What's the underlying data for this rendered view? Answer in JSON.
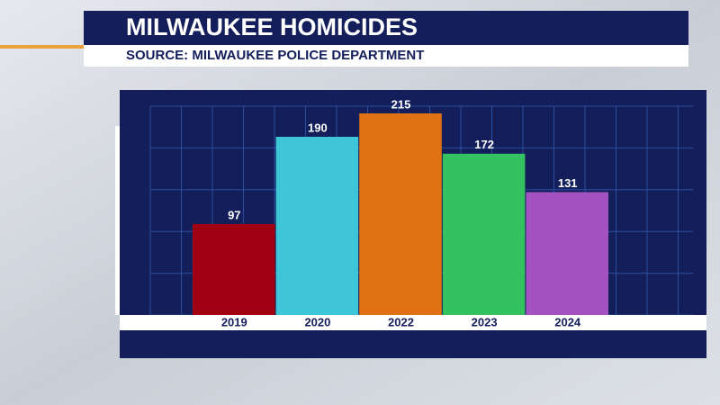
{
  "chart_data": {
    "type": "bar",
    "title": "MILWAUKEE HOMICIDES",
    "subtitle": "SOURCE: MILWAUKEE POLICE DEPARTMENT",
    "categories": [
      "2019",
      "2020",
      "2022",
      "2023",
      "2024"
    ],
    "values": [
      97,
      190,
      215,
      172,
      131
    ],
    "colors": [
      "#a00012",
      "#3ec6d8",
      "#e07214",
      "#33c25f",
      "#a452c2"
    ]
  }
}
